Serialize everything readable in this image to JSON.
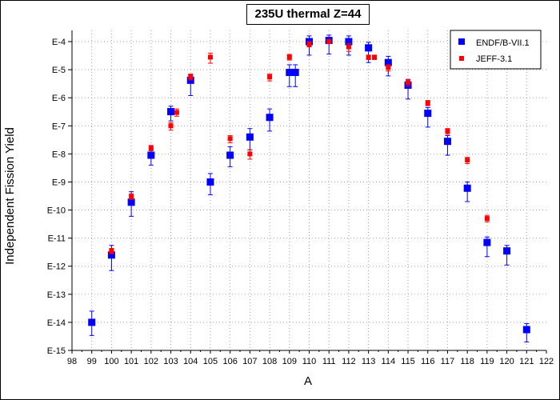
{
  "chart_data": {
    "type": "scatter",
    "title": "235U thermal Z=44",
    "xlabel": "A",
    "ylabel": "Independent Fission Yield",
    "xlim": [
      98,
      122
    ],
    "ylim": [
      -15,
      -3.6
    ],
    "y_scale": "log",
    "grid": true,
    "legend_position": "top-right",
    "x_tick_labels": [
      "98",
      "99",
      "100",
      "101",
      "102",
      "103",
      "104",
      "105",
      "106",
      "107",
      "108",
      "109",
      "110",
      "111",
      "112",
      "113",
      "114",
      "115",
      "116",
      "117",
      "118",
      "119",
      "120",
      "121",
      "122"
    ],
    "y_tick_labels": [
      "E-15",
      "E-14",
      "E-13",
      "E-12",
      "E-11",
      "E-10",
      "E-9",
      "E-8",
      "E-7",
      "E-6",
      "E-5",
      "E-4"
    ],
    "series": [
      {
        "name": "ENDF/B-VII.1",
        "color": "#0000ff",
        "marker": "square",
        "points": [
          {
            "x": 99,
            "y": "1.0E-14",
            "lo": "3.4E-15",
            "hi": "2.5E-14"
          },
          {
            "x": 100,
            "y": "2.5E-12",
            "lo": "7.0E-13",
            "hi": "5.5E-12"
          },
          {
            "x": 101,
            "y": "1.9E-10",
            "lo": "6.0E-11",
            "hi": "4.5E-10"
          },
          {
            "x": 102,
            "y": "9.0E-9",
            "lo": "4.0E-9",
            "hi": "1.6E-8"
          },
          {
            "x": 103,
            "y": "3.2E-7",
            "lo": "1.5E-7",
            "hi": "5.0E-7"
          },
          {
            "x": 104,
            "y": "4.2E-6",
            "lo": "1.2E-6",
            "hi": "6.5E-6"
          },
          {
            "x": 105,
            "y": "1.0E-9",
            "lo": "3.5E-10",
            "hi": "2.0E-9"
          },
          {
            "x": 106,
            "y": "9.0E-9",
            "lo": "3.5E-9",
            "hi": "1.8E-8"
          },
          {
            "x": 107,
            "y": "4.0E-8",
            "lo": "1.4E-8",
            "hi": "8.0E-8"
          },
          {
            "x": 108,
            "y": "2.0E-7",
            "lo": "6.5E-8",
            "hi": "4.0E-7"
          },
          {
            "x": 109,
            "y": "8.0E-6",
            "lo": "2.5E-6",
            "hi": "1.5E-5"
          },
          {
            "x": 109.3,
            "y": "8.0E-6",
            "lo": "2.5E-6",
            "hi": "1.5E-5"
          },
          {
            "x": 110,
            "y": "1.0E-4",
            "lo": "3.3E-5",
            "hi": "1.6E-4"
          },
          {
            "x": 111,
            "y": "1.1E-4",
            "lo": "3.6E-5",
            "hi": "1.7E-4"
          },
          {
            "x": 112,
            "y": "1.0E-4",
            "lo": "3.3E-5",
            "hi": "1.6E-4"
          },
          {
            "x": 113,
            "y": "6.0E-5",
            "lo": "1.8E-5",
            "hi": "9.5E-5"
          },
          {
            "x": 114,
            "y": "1.8E-5",
            "lo": "6.0E-6",
            "hi": "3.0E-5"
          },
          {
            "x": 115,
            "y": "2.8E-6",
            "lo": "9.0E-7",
            "hi": "4.5E-6"
          },
          {
            "x": 116,
            "y": "2.8E-7",
            "lo": "9.0E-8",
            "hi": "4.5E-7"
          },
          {
            "x": 117,
            "y": "2.8E-8",
            "lo": "9.0E-9",
            "hi": "4.5E-8"
          },
          {
            "x": 118,
            "y": "6.0E-10",
            "lo": "2.0E-10",
            "hi": "1.0E-9"
          },
          {
            "x": 119,
            "y": "7.0E-12",
            "lo": "2.2E-12",
            "hi": "1.1E-11"
          },
          {
            "x": 120,
            "y": "3.5E-12",
            "lo": "1.1E-12",
            "hi": "5.5E-12"
          },
          {
            "x": 121,
            "y": "5.5E-15",
            "lo": "2.0E-15",
            "hi": "9.0E-15"
          }
        ]
      },
      {
        "name": "JEFF-3.1",
        "color": "#ff0000",
        "marker": "square",
        "points": [
          {
            "x": 100,
            "y": "3.5E-12",
            "lo": "2.8E-12",
            "hi": "4.3E-12"
          },
          {
            "x": 101,
            "y": "3.0E-10",
            "lo": "2.4E-10",
            "hi": "3.8E-10"
          },
          {
            "x": 102,
            "y": "1.6E-8",
            "lo": "1.3E-8",
            "hi": "2.0E-8"
          },
          {
            "x": 103,
            "y": "1.0E-7",
            "lo": "7.0E-8",
            "hi": "1.3E-7"
          },
          {
            "x": 103.3,
            "y": "3.0E-7",
            "lo": "2.2E-7",
            "hi": "4.0E-7"
          },
          {
            "x": 104,
            "y": "5.5E-6",
            "lo": "4.3E-6",
            "hi": "7.0E-6"
          },
          {
            "x": 105,
            "y": "2.8E-5",
            "lo": "1.7E-5",
            "hi": "3.9E-5"
          },
          {
            "x": 106,
            "y": "3.5E-8",
            "lo": "2.5E-8",
            "hi": "4.5E-8"
          },
          {
            "x": 107,
            "y": "1.0E-8",
            "lo": "6.5E-9",
            "hi": "1.4E-8"
          },
          {
            "x": 108,
            "y": "5.5E-6",
            "lo": "4.0E-6",
            "hi": "7.0E-6"
          },
          {
            "x": 109,
            "y": "2.8E-5",
            "lo": "2.2E-5",
            "hi": "3.5E-5"
          },
          {
            "x": 110,
            "y": "8.0E-5",
            "lo": "6.5E-5",
            "hi": "1.0E-4"
          },
          {
            "x": 111,
            "y": "1.0E-4",
            "lo": "8.5E-5",
            "hi": "1.2E-4"
          },
          {
            "x": 112,
            "y": "6.5E-5",
            "lo": "4.5E-5",
            "hi": "8.5E-5"
          },
          {
            "x": 113,
            "y": "2.8E-5",
            "lo": "2.3E-5",
            "hi": "3.3E-5"
          },
          {
            "x": 113.3,
            "y": "2.8E-5",
            "lo": "2.3E-5",
            "hi": "3.3E-5"
          },
          {
            "x": 114,
            "y": "1.2E-5",
            "lo": "9.0E-6",
            "hi": "1.5E-5"
          },
          {
            "x": 115,
            "y": "3.5E-6",
            "lo": "2.6E-6",
            "hi": "4.5E-6"
          },
          {
            "x": 116,
            "y": "6.5E-7",
            "lo": "5.2E-7",
            "hi": "8.0E-7"
          },
          {
            "x": 117,
            "y": "6.5E-8",
            "lo": "5.0E-8",
            "hi": "8.0E-8"
          },
          {
            "x": 118,
            "y": "6.0E-9",
            "lo": "4.5E-9",
            "hi": "7.5E-9"
          },
          {
            "x": 119,
            "y": "5.0E-11",
            "lo": "3.8E-11",
            "hi": "6.5E-11"
          }
        ]
      }
    ]
  }
}
